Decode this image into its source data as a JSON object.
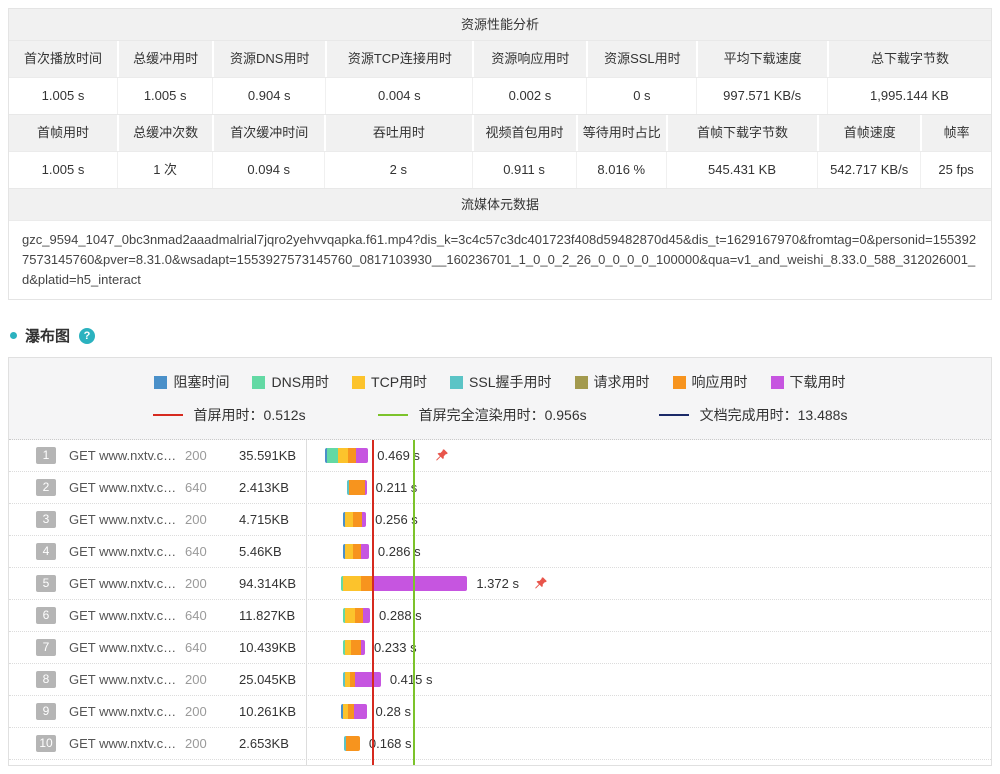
{
  "perf_table": {
    "title": "资源性能分析",
    "groups": [
      {
        "headers": [
          "首次播放时间",
          "总缓冲用时",
          "资源DNS用时",
          "资源TCP连接用时",
          "资源响应用时",
          "资源SSL用时",
          "平均下载速度",
          "总下载字节数"
        ],
        "values": [
          "1.005 s",
          "1.005 s",
          "0.904 s",
          "0.004 s",
          "0.002 s",
          "0 s",
          "997.571 KB/s",
          "1,995.144 KB"
        ]
      },
      {
        "headers": [
          "首帧用时",
          "总缓冲次数",
          "首次缓冲时间",
          "吞吐用时",
          "视频首包用时",
          "等待用时占比",
          "首帧下载字节数",
          "首帧速度",
          "帧率"
        ],
        "values": [
          "1.005 s",
          "1 次",
          "0.094 s",
          "2 s",
          "0.911 s",
          "8.016 %",
          "545.431 KB",
          "542.717 KB/s",
          "25 fps"
        ]
      }
    ],
    "meta_title": "流媒体元数据",
    "meta_url": "gzc_9594_1047_0bc3nmad2aaadmalrial7jqro2yehvvqapka.f61.mp4?dis_k=3c4c57c3dc401723f408d59482870d45&dis_t=1629167970&fromtag=0&personid=1553927573145760&pver=8.31.0&wsadapt=1553927573145760_0817103930__160236701_1_0_0_2_26_0_0_0_0_100000&qua=v1_and_weishi_8.33.0_588_312026001_d&platid=h5_interact"
  },
  "waterfall": {
    "section_title": "瀑布图",
    "help_glyph": "?",
    "accent_color": "#2bb2bf",
    "phases": [
      {
        "key": "blocked",
        "label": "阻塞时间",
        "color": "#4a90c9"
      },
      {
        "key": "dns",
        "label": "DNS用时",
        "color": "#63d9a4"
      },
      {
        "key": "tcp",
        "label": "TCP用时",
        "color": "#fcc32c"
      },
      {
        "key": "ssl",
        "label": "SSL握手用时",
        "color": "#5bc4c6"
      },
      {
        "key": "request",
        "label": "请求用时",
        "color": "#a39a4e"
      },
      {
        "key": "response",
        "label": "响应用时",
        "color": "#f7941e"
      },
      {
        "key": "download",
        "label": "下载用时",
        "color": "#c655e0"
      }
    ],
    "timing_lines": [
      {
        "label": "首屏用时：0.512s",
        "color": "#d62a1f",
        "time_s": 0.512
      },
      {
        "label": "首屏完全渲染用时：0.956s",
        "color": "#7cc32b",
        "time_s": 0.956
      },
      {
        "label": "文档完成用时：13.488s",
        "color": "#1b2a68",
        "time_s": 13.488
      }
    ],
    "pin_color": "#e8554b",
    "rows": [
      {
        "num": "1",
        "request": "GET www.nxtv.c…",
        "status": "200",
        "size": "35.591KB",
        "time": "0.469 s",
        "pinned": true,
        "start_s": 0.0,
        "segments": [
          {
            "phase": "blocked",
            "s": 0.025
          },
          {
            "phase": "dns",
            "s": 0.115
          },
          {
            "phase": "tcp",
            "s": 0.11
          },
          {
            "phase": "response",
            "s": 0.085
          },
          {
            "phase": "download",
            "s": 0.134
          }
        ]
      },
      {
        "num": "2",
        "request": "GET www.nxtv.c…",
        "status": "640",
        "size": "2.413KB",
        "time": "0.211 s",
        "pinned": false,
        "start_s": 0.24,
        "segments": [
          {
            "phase": "ssl",
            "s": 0.025
          },
          {
            "phase": "response",
            "s": 0.166
          },
          {
            "phase": "download",
            "s": 0.02
          }
        ]
      },
      {
        "num": "3",
        "request": "GET www.nxtv.c…",
        "status": "200",
        "size": "4.715KB",
        "time": "0.256 s",
        "pinned": false,
        "start_s": 0.19,
        "segments": [
          {
            "phase": "blocked",
            "s": 0.02
          },
          {
            "phase": "tcp",
            "s": 0.09
          },
          {
            "phase": "response",
            "s": 0.1
          },
          {
            "phase": "download",
            "s": 0.046
          }
        ]
      },
      {
        "num": "4",
        "request": "GET www.nxtv.c…",
        "status": "640",
        "size": "5.46KB",
        "time": "0.286 s",
        "pinned": false,
        "start_s": 0.19,
        "segments": [
          {
            "phase": "blocked",
            "s": 0.02
          },
          {
            "phase": "tcp",
            "s": 0.09
          },
          {
            "phase": "response",
            "s": 0.09
          },
          {
            "phase": "download",
            "s": 0.086
          }
        ]
      },
      {
        "num": "5",
        "request": "GET www.nxtv.c…",
        "status": "200",
        "size": "94.314KB",
        "time": "1.372 s",
        "pinned": true,
        "start_s": 0.17,
        "segments": [
          {
            "phase": "dns",
            "s": 0.025
          },
          {
            "phase": "tcp",
            "s": 0.2
          },
          {
            "phase": "response",
            "s": 0.127
          },
          {
            "phase": "download",
            "s": 1.02
          }
        ]
      },
      {
        "num": "6",
        "request": "GET www.nxtv.c…",
        "status": "640",
        "size": "11.827KB",
        "time": "0.288 s",
        "pinned": false,
        "start_s": 0.2,
        "segments": [
          {
            "phase": "dns",
            "s": 0.02
          },
          {
            "phase": "tcp",
            "s": 0.1
          },
          {
            "phase": "response",
            "s": 0.09
          },
          {
            "phase": "download",
            "s": 0.078
          }
        ]
      },
      {
        "num": "7",
        "request": "GET www.nxtv.c…",
        "status": "640",
        "size": "10.439KB",
        "time": "0.233 s",
        "pinned": false,
        "start_s": 0.2,
        "segments": [
          {
            "phase": "dns",
            "s": 0.02
          },
          {
            "phase": "tcp",
            "s": 0.06
          },
          {
            "phase": "response",
            "s": 0.11
          },
          {
            "phase": "download",
            "s": 0.043
          }
        ]
      },
      {
        "num": "8",
        "request": "GET www.nxtv.c…",
        "status": "200",
        "size": "25.045KB",
        "time": "0.415 s",
        "pinned": false,
        "start_s": 0.19,
        "segments": [
          {
            "phase": "ssl",
            "s": 0.025
          },
          {
            "phase": "tcp",
            "s": 0.06
          },
          {
            "phase": "response",
            "s": 0.05
          },
          {
            "phase": "download",
            "s": 0.28
          }
        ]
      },
      {
        "num": "9",
        "request": "GET www.nxtv.c…",
        "status": "200",
        "size": "10.261KB",
        "time": "0.28 s",
        "pinned": false,
        "start_s": 0.17,
        "segments": [
          {
            "phase": "blocked",
            "s": 0.02
          },
          {
            "phase": "tcp",
            "s": 0.06
          },
          {
            "phase": "response",
            "s": 0.06
          },
          {
            "phase": "download",
            "s": 0.14
          }
        ]
      },
      {
        "num": "10",
        "request": "GET www.nxtv.c…",
        "status": "200",
        "size": "2.653KB",
        "time": "0.168 s",
        "pinned": false,
        "start_s": 0.21,
        "segments": [
          {
            "phase": "ssl",
            "s": 0.02
          },
          {
            "phase": "response",
            "s": 0.148
          }
        ]
      }
    ]
  }
}
